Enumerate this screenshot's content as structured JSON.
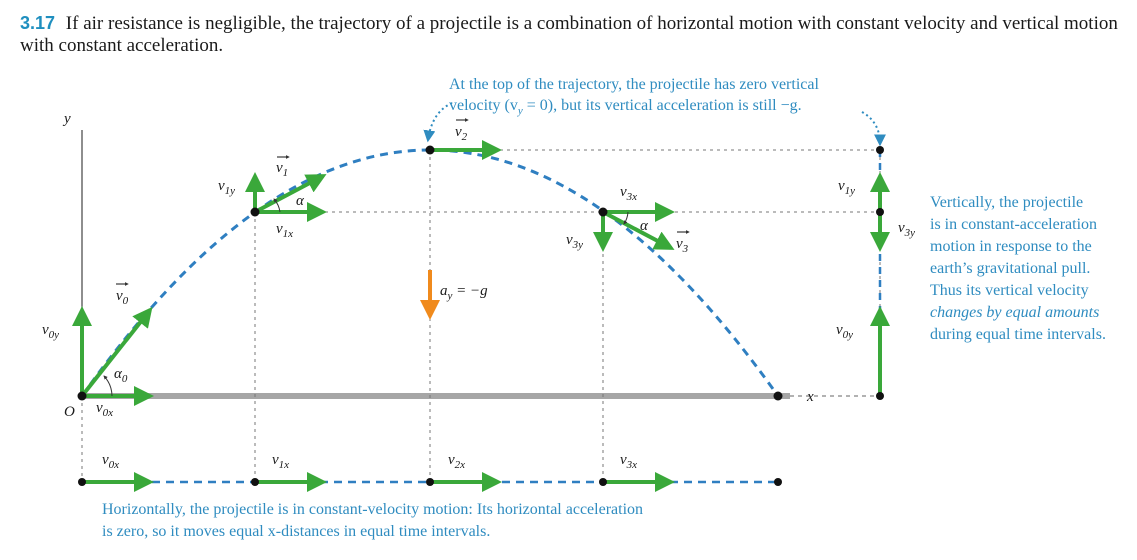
{
  "figure": {
    "number": "3.17",
    "caption": "If air resistance is negligible, the trajectory of a projectile is a combination of horizontal motion with constant velocity and vertical motion with constant acceleration."
  },
  "annotations": {
    "top_line1": "At the top of the trajectory, the projectile has zero vertical",
    "top_line2": "velocity (v",
    "top_line2_sub": "y",
    "top_line2_rest": " = 0), but its vertical acceleration is still −g.",
    "vertical_lines": [
      "Vertically, the projectile",
      "is in constant-acceleration",
      "motion in response to the",
      "earth’s gravitational pull.",
      "Thus its vertical velocity",
      "changes by equal amounts",
      "during equal time intervals."
    ],
    "horizontal_line1": "Horizontally, the projectile is in constant-velocity motion: Its horizontal acceleration",
    "horizontal_line2": "is zero, so it moves equal x-distances in equal time intervals."
  },
  "labels": {
    "axis_y": "y",
    "axis_x": "x",
    "origin": "O",
    "ay_left": "a",
    "ay_sub": "y",
    "ay_right": " = −g",
    "v0": "v",
    "v0_sub": "0",
    "v1": "v",
    "v1_sub": "1",
    "v2": "v",
    "v2_sub": "2",
    "v3": "v",
    "v3_sub": "3",
    "v0y": "v",
    "v0y_sub": "0y",
    "v0x": "v",
    "v0x_sub": "0x",
    "v1y": "v",
    "v1y_sub": "1y",
    "v1x": "v",
    "v1x_sub": "1x",
    "v2x": "v",
    "v2x_sub": "2x",
    "v3x": "v",
    "v3x_sub": "3x",
    "v3y": "v",
    "v3y_sub": "3y",
    "alpha": "α",
    "alpha0": "α",
    "alpha0_sub": "0"
  },
  "colors": {
    "trajectory": "#2f7fc1",
    "vector": "#3aa83a",
    "acceleration": "#f08a1c",
    "note": "#2f8cc0",
    "axis": "#444444",
    "ground": "#9a9a9a"
  }
}
